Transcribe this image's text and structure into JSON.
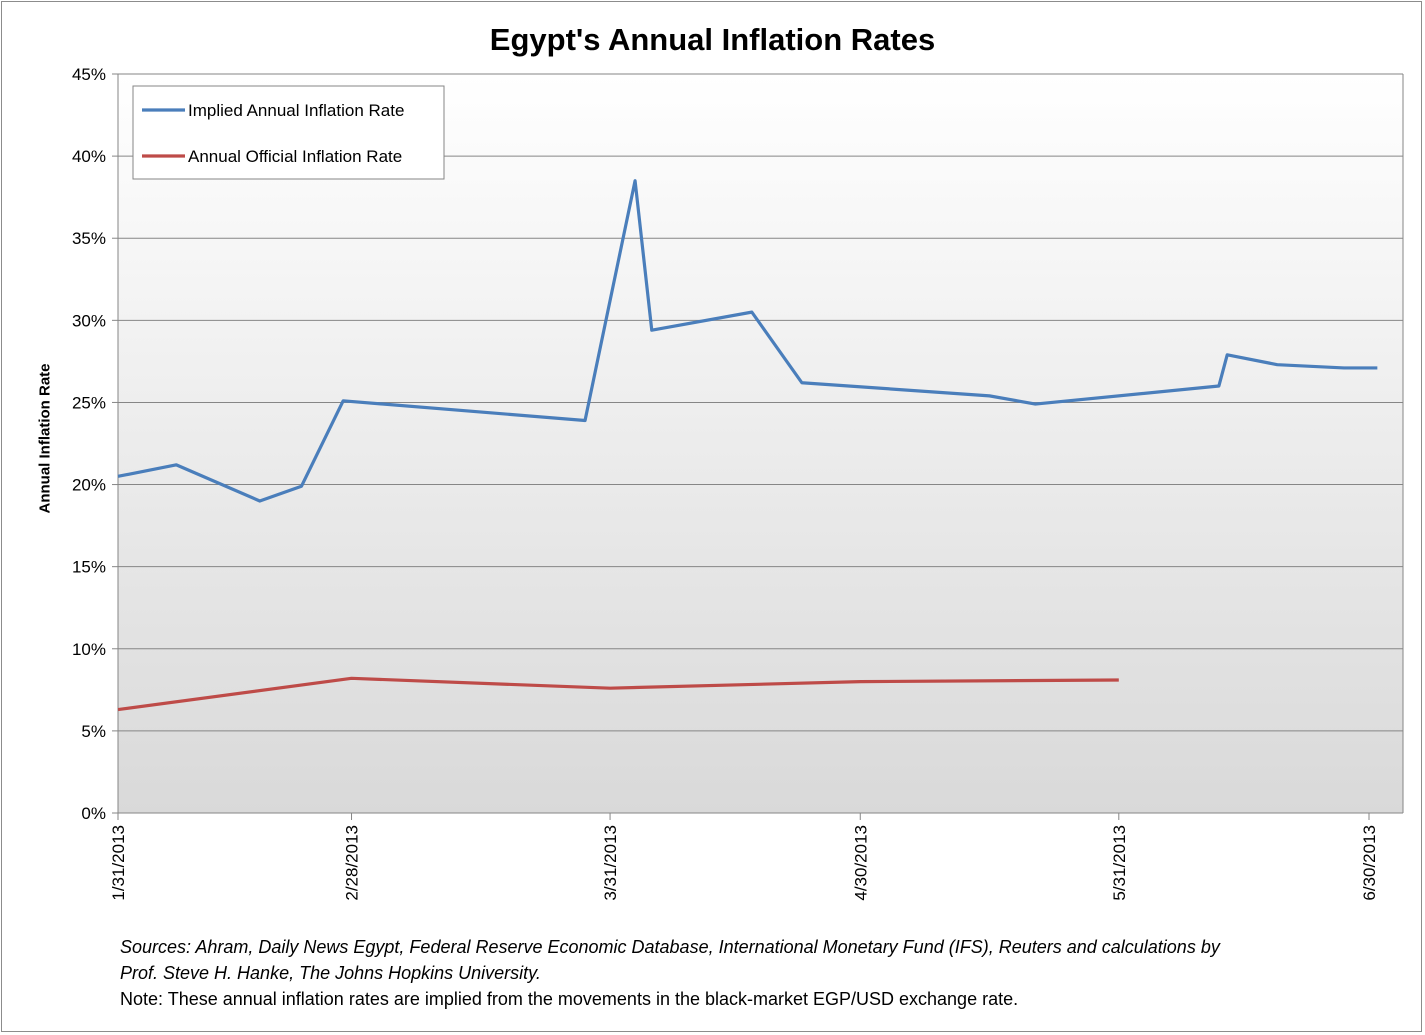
{
  "chart_data": {
    "type": "line",
    "title": "Egypt's Annual Inflation Rates",
    "xlabel": "",
    "ylabel": "Annual Inflation Rate",
    "ylim": [
      0,
      45
    ],
    "yticks": [
      0,
      5,
      10,
      15,
      20,
      25,
      30,
      35,
      40,
      45
    ],
    "ytick_labels": [
      "0%",
      "5%",
      "10%",
      "15%",
      "20%",
      "25%",
      "30%",
      "35%",
      "40%",
      "45%"
    ],
    "x_unit": "days since 1/31/2013",
    "xlim": [
      0,
      150
    ],
    "xticks": [
      0,
      28,
      59,
      89,
      120,
      150
    ],
    "xtick_labels": [
      "1/31/2013",
      "2/28/2013",
      "3/31/2013",
      "4/30/2013",
      "5/31/2013",
      "6/30/2013"
    ],
    "grid": true,
    "legend_position": "top-left",
    "series": [
      {
        "name": "Implied Annual Inflation Rate",
        "color": "#4a7ebb",
        "x": [
          0,
          7,
          17,
          22,
          27,
          56,
          62,
          64,
          76,
          82,
          104.5,
          110,
          132,
          133,
          139,
          147,
          151
        ],
        "y": [
          20.5,
          21.2,
          19.0,
          19.9,
          25.1,
          23.9,
          38.5,
          29.4,
          30.5,
          26.2,
          25.4,
          24.9,
          26.0,
          27.9,
          27.3,
          27.1,
          27.1
        ]
      },
      {
        "name": "Annual Official Inflation Rate",
        "color": "#be4b48",
        "x": [
          0,
          28,
          59,
          89,
          120
        ],
        "y": [
          6.3,
          8.2,
          7.6,
          8.0,
          8.1
        ]
      }
    ]
  },
  "notes": {
    "sources": "Sources: Ahram, Daily News Egypt, Federal Reserve Economic Database, International Monetary Fund (IFS),  Reuters and calculations by",
    "sources2": "Prof. Steve H. Hanke, The Johns Hopkins University.",
    "note": "Note: These annual inflation rates are implied from the movements in the  black-market EGP/USD exchange rate."
  }
}
